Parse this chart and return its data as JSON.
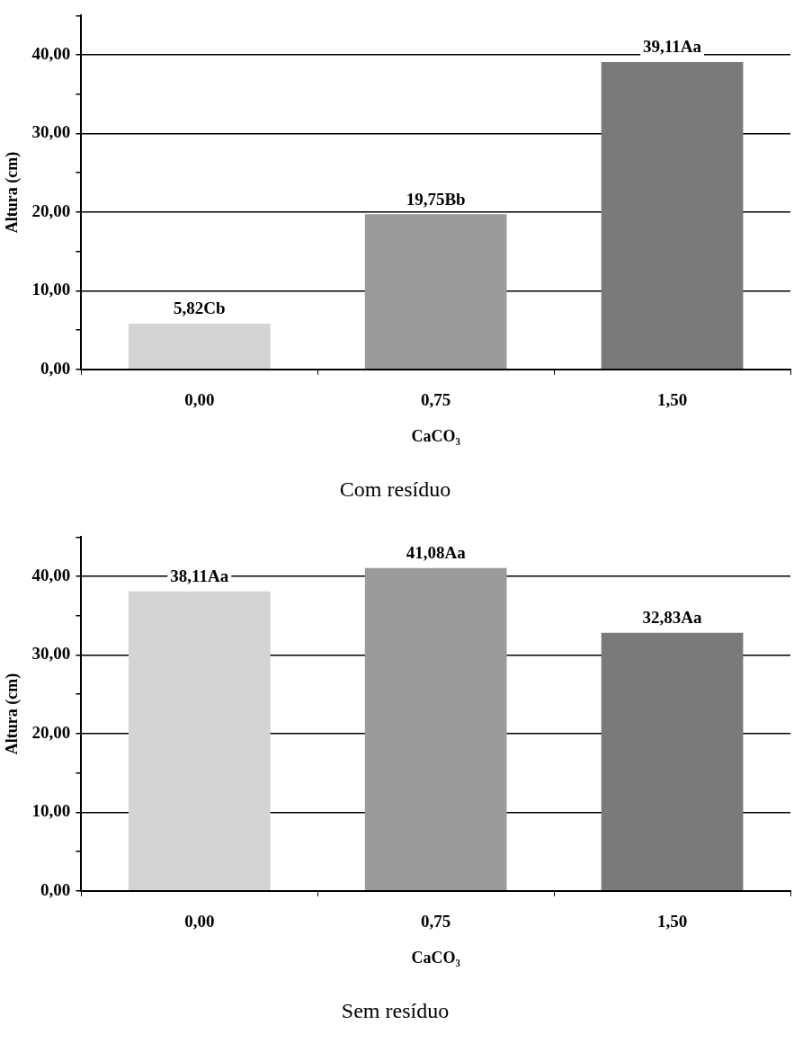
{
  "chart_data": [
    {
      "type": "bar",
      "title": "Com resíduo",
      "xlabel": "CaCO₃",
      "ylabel": "Altura (cm)",
      "categories": [
        "0,00",
        "0,75",
        "1,50"
      ],
      "values": [
        5.82,
        19.75,
        39.11
      ],
      "colors": [
        "#d4d4d4",
        "#9a9a9a",
        "#7a7a7a"
      ],
      "value_labels": [
        "5,82Cb",
        "19,75Bb",
        "39,11Aa"
      ],
      "ylim": [
        0,
        45
      ],
      "yticks": [
        {
          "value": 0,
          "label": "0,00"
        },
        {
          "value": 5,
          "label": null
        },
        {
          "value": 10,
          "label": "10,00"
        },
        {
          "value": 15,
          "label": null
        },
        {
          "value": 20,
          "label": "20,00"
        },
        {
          "value": 25,
          "label": null
        },
        {
          "value": 30,
          "label": "30,00"
        },
        {
          "value": 35,
          "label": null
        },
        {
          "value": 40,
          "label": "40,00"
        },
        {
          "value": 45,
          "label": null
        }
      ],
      "grid": "y",
      "legend": false
    },
    {
      "type": "bar",
      "title": "Sem resíduo",
      "xlabel": "CaCO₃",
      "ylabel": "Altura (cm)",
      "categories": [
        "0,00",
        "0,75",
        "1,50"
      ],
      "values": [
        38.11,
        41.08,
        32.83
      ],
      "colors": [
        "#d4d4d4",
        "#9a9a9a",
        "#7a7a7a"
      ],
      "value_labels": [
        "38,11Aa",
        "41,08Aa",
        "32,83Aa"
      ],
      "ylim": [
        0,
        45
      ],
      "yticks": [
        {
          "value": 0,
          "label": "0,00"
        },
        {
          "value": 5,
          "label": null
        },
        {
          "value": 10,
          "label": "10,00"
        },
        {
          "value": 15,
          "label": null
        },
        {
          "value": 20,
          "label": "20,00"
        },
        {
          "value": 25,
          "label": null
        },
        {
          "value": 30,
          "label": "30,00"
        },
        {
          "value": 35,
          "label": null
        },
        {
          "value": 40,
          "label": "40,00"
        },
        {
          "value": 45,
          "label": null
        }
      ],
      "grid": "y",
      "legend": false
    }
  ]
}
